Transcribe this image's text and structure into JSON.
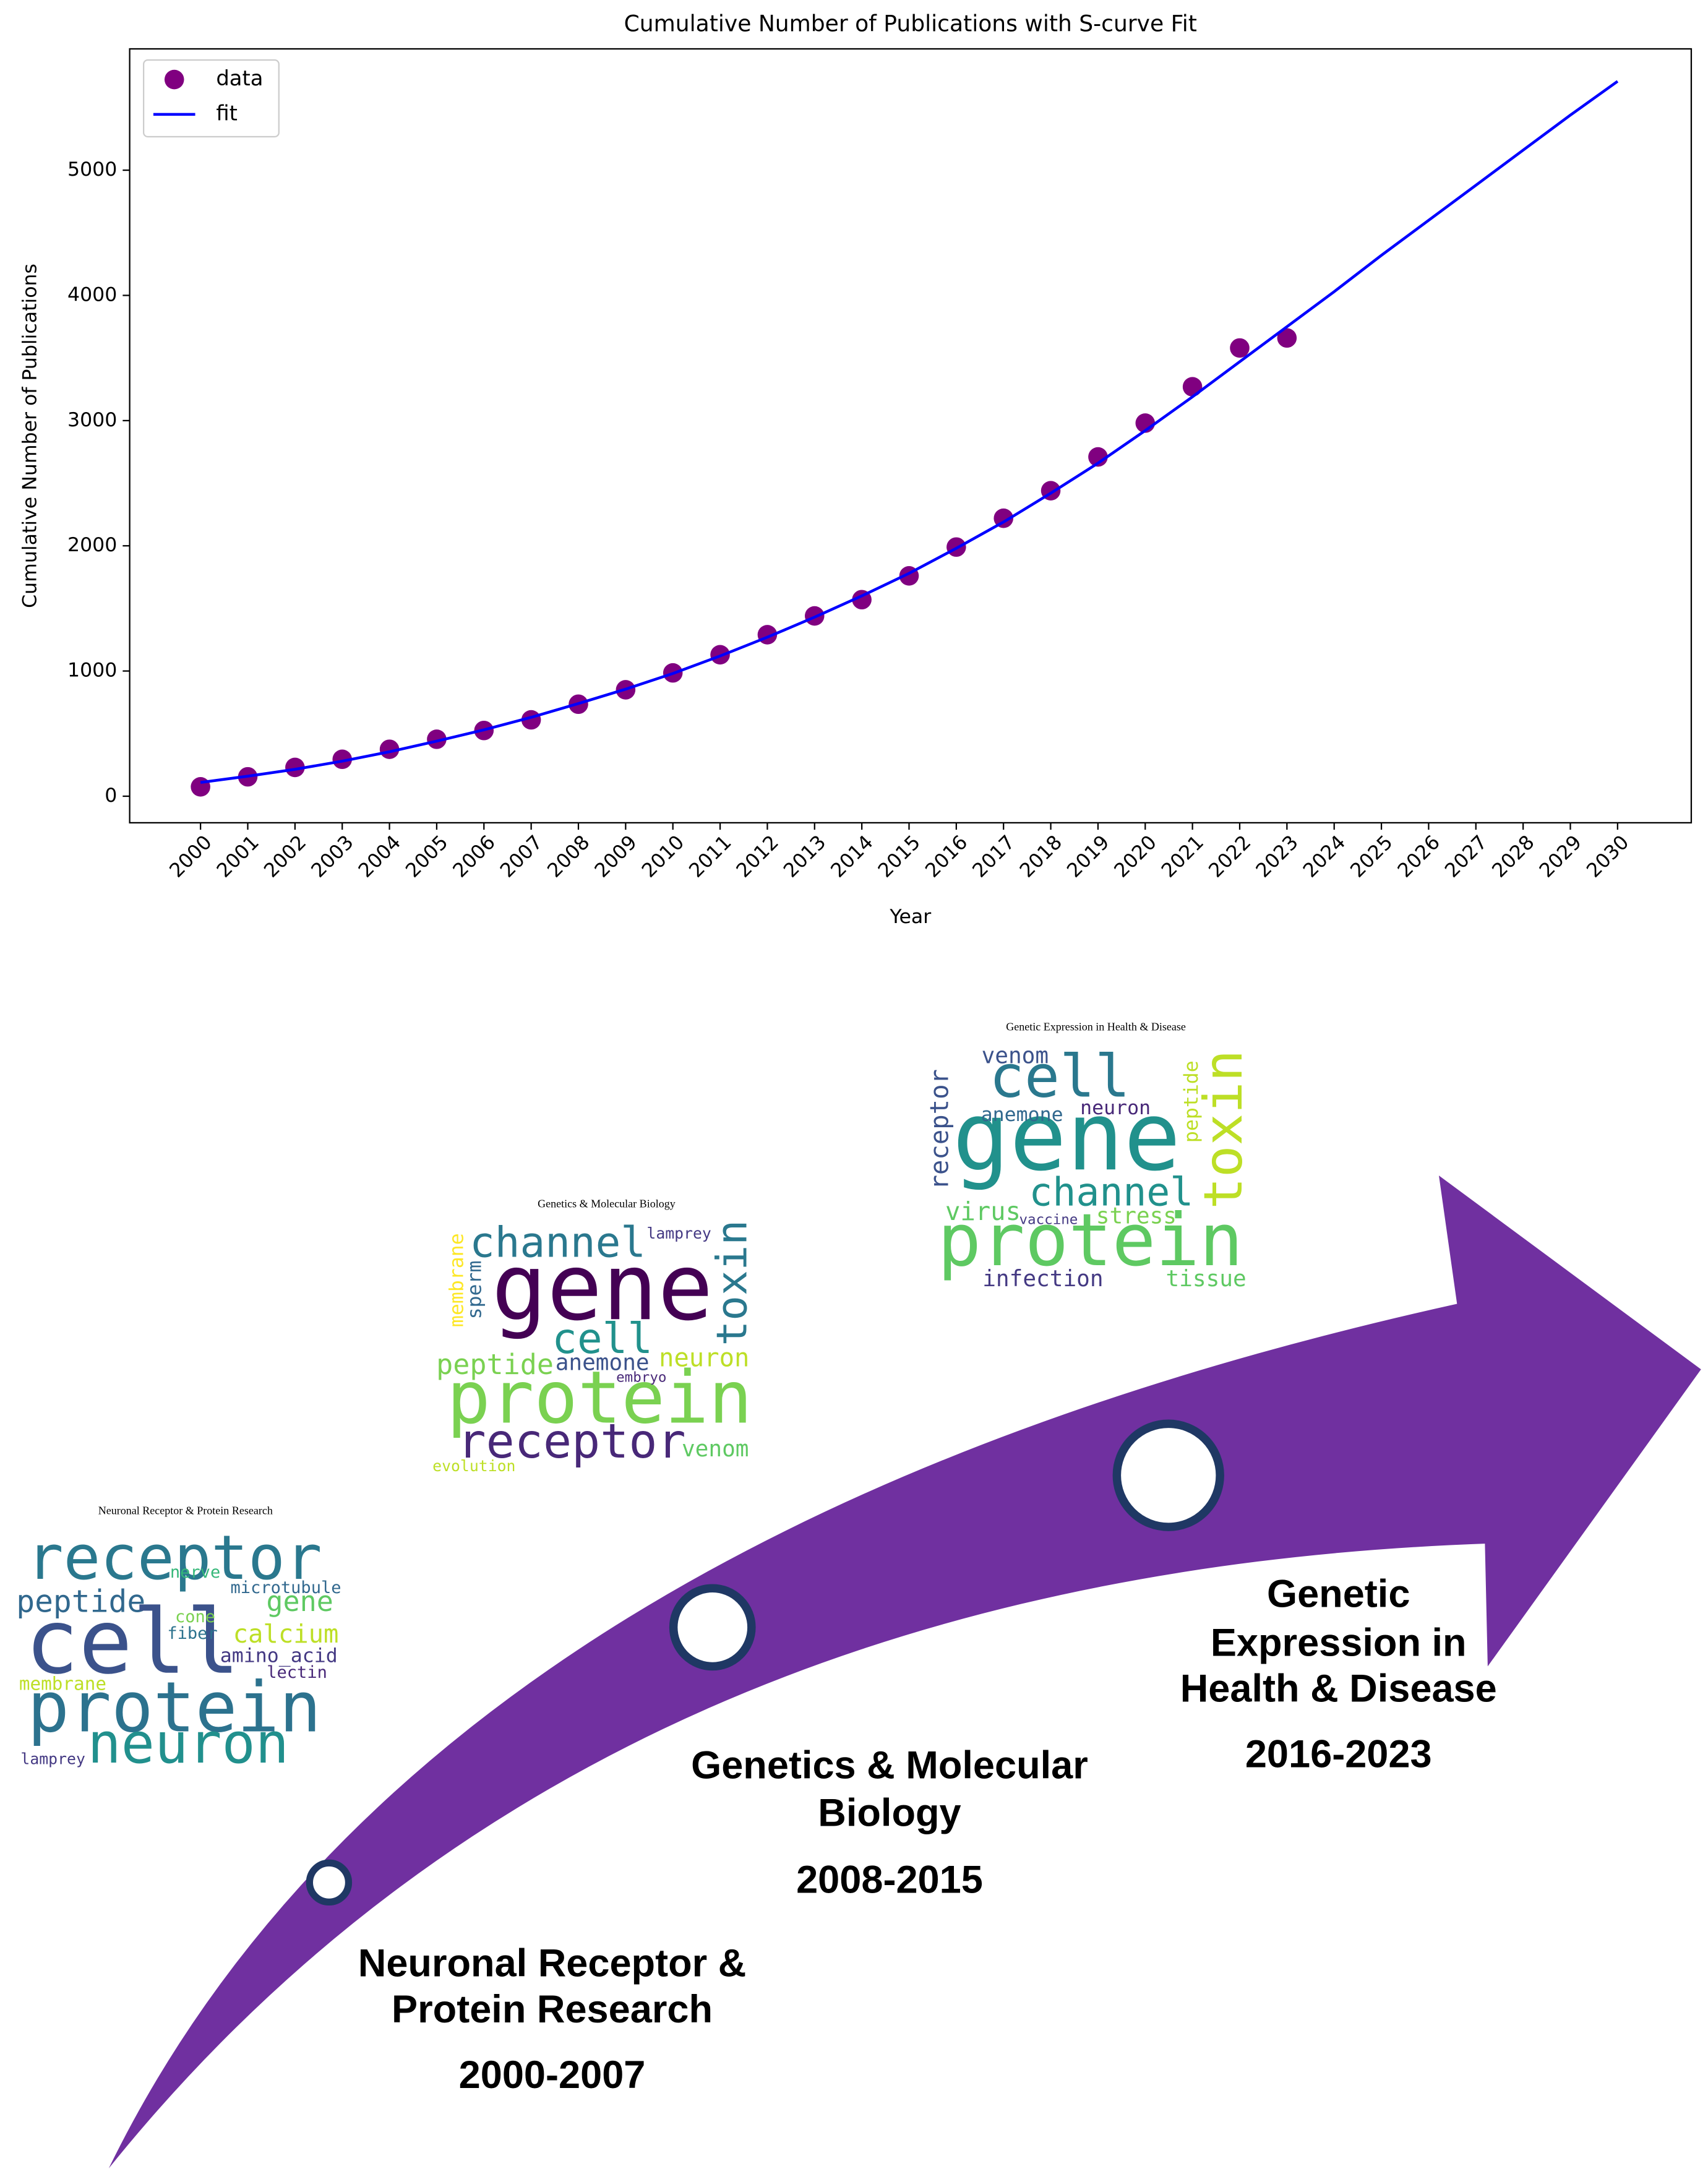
{
  "chart_data": {
    "type": "scatter",
    "title": "Cumulative Number of Publications with S-curve Fit",
    "xlabel": "Year",
    "ylabel": "Cumulative Number of Publications",
    "xlim": [
      1998.5,
      2031.56
    ],
    "ylim": [
      -212,
      5969
    ],
    "xticks": [
      2000,
      2001,
      2002,
      2003,
      2004,
      2005,
      2006,
      2007,
      2008,
      2009,
      2010,
      2011,
      2012,
      2013,
      2014,
      2015,
      2016,
      2017,
      2018,
      2019,
      2020,
      2021,
      2022,
      2023,
      2024,
      2025,
      2026,
      2027,
      2028,
      2029,
      2030
    ],
    "yticks": [
      0,
      1000,
      2000,
      3000,
      4000,
      5000
    ],
    "legend": "upper left",
    "series": [
      {
        "name": "data",
        "type": "scatter",
        "color": "#800080",
        "x": [
          2000,
          2001,
          2002,
          2003,
          2004,
          2005,
          2006,
          2007,
          2008,
          2009,
          2010,
          2011,
          2012,
          2013,
          2014,
          2015,
          2016,
          2017,
          2018,
          2019,
          2020,
          2021,
          2022,
          2023
        ],
        "values": [
          75,
          155,
          230,
          295,
          375,
          455,
          525,
          610,
          735,
          850,
          985,
          1130,
          1290,
          1440,
          1570,
          1760,
          1990,
          2220,
          2440,
          2710,
          2980,
          3270,
          3580,
          3660
        ]
      },
      {
        "name": "fit",
        "type": "line",
        "color": "#0000ff",
        "x": [
          2000,
          2001,
          2002,
          2003,
          2004,
          2005,
          2006,
          2007,
          2008,
          2009,
          2010,
          2011,
          2012,
          2013,
          2014,
          2015,
          2016,
          2017,
          2018,
          2019,
          2020,
          2021,
          2022,
          2023,
          2024,
          2025,
          2026,
          2027,
          2028,
          2029,
          2030
        ],
        "values": [
          110,
          160,
          215,
          280,
          355,
          440,
          530,
          630,
          740,
          855,
          980,
          1120,
          1270,
          1430,
          1600,
          1780,
          1980,
          2190,
          2420,
          2660,
          2920,
          3190,
          3470,
          3750,
          4030,
          4320,
          4600,
          4880,
          5160,
          5440,
          5710
        ]
      }
    ]
  },
  "timeline": [
    {
      "label_lines": [
        "Neuronal Receptor &",
        "Protein Research"
      ],
      "period": "2000-2007"
    },
    {
      "label_lines": [
        "Genetics & Molecular",
        "Biology"
      ],
      "period": "2008-2015"
    },
    {
      "label_lines": [
        "Genetic",
        "Expression in",
        "Health & Disease"
      ],
      "period": "2016-2023"
    }
  ],
  "word_clouds": [
    {
      "title": "Neuronal Receptor & Protein Research",
      "words": [
        "receptor",
        "peptide",
        "cell",
        "protein",
        "neuron",
        "calcium",
        "gene",
        "nerve",
        "microtubule",
        "amino_acid",
        "fiber",
        "lectin",
        "membrane",
        "lamprey",
        "cone"
      ]
    },
    {
      "title": "Genetics & Molecular Biology",
      "words": [
        "gene",
        "protein",
        "channel",
        "receptor",
        "toxin",
        "cell",
        "peptide",
        "anemone",
        "neuron",
        "venom",
        "membrane",
        "sperm",
        "lamprey",
        "evolution",
        "embryo"
      ]
    },
    {
      "title": "Genetic Expression in Health & Disease",
      "words": [
        "gene",
        "protein",
        "cell",
        "toxin",
        "channel",
        "venom",
        "anemone",
        "neuron",
        "receptor",
        "virus",
        "stress",
        "infection",
        "tissue",
        "peptide",
        "vaccine"
      ]
    }
  ]
}
